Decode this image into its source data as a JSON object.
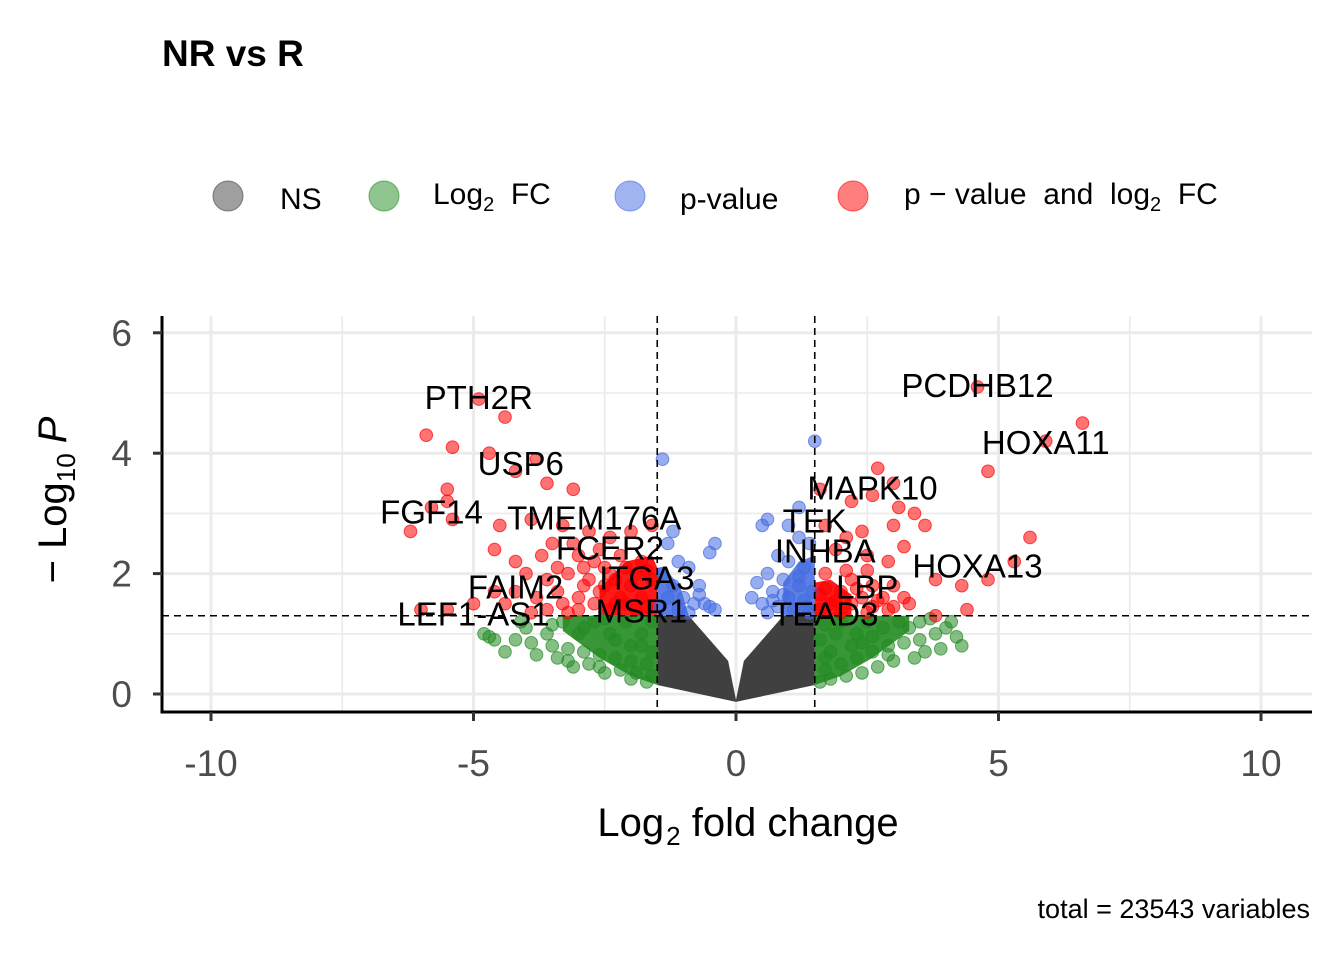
{
  "chart_data": {
    "type": "scatter",
    "title": "NR vs R",
    "caption": "total = 23543 variables",
    "xlabel": {
      "base": "Log",
      "sub": "2",
      "rest": " fold change"
    },
    "ylabel": {
      "pre": "− Log",
      "sub": "10",
      "var": "P"
    },
    "xlim": [
      -11,
      11
    ],
    "ylim": [
      -0.3,
      6.3
    ],
    "x_ticks": [
      -10,
      -5,
      0,
      5,
      10
    ],
    "x_tick_labels": [
      "-10",
      "-5",
      "0",
      "5",
      "10"
    ],
    "y_ticks": [
      0,
      2,
      4,
      6
    ],
    "y_tick_labels": [
      "0",
      "2",
      "4",
      "6"
    ],
    "grid": true,
    "fc_cutoff": 1.5,
    "p_cutoff_log": 1.3,
    "colors": {
      "NS": "#404040",
      "Log2FC": "#228B22",
      "pvalue": "#4169E1",
      "both": "#FF0000"
    },
    "legend": [
      {
        "key": "NS",
        "color": "#404040",
        "parts": [
          {
            "t": "NS"
          }
        ]
      },
      {
        "key": "Log2FC",
        "color": "#228B22",
        "parts": [
          {
            "t": "Log"
          },
          {
            "t": "2",
            "sub": true
          },
          {
            "t": "  FC"
          }
        ]
      },
      {
        "key": "pvalue",
        "color": "#4169E1",
        "parts": [
          {
            "t": "p-value"
          }
        ]
      },
      {
        "key": "both",
        "color": "#FF0000",
        "parts": [
          {
            "t": "p − value  and  log"
          },
          {
            "t": "2",
            "sub": true
          },
          {
            "t": "  FC"
          }
        ]
      }
    ],
    "points_both": [
      [
        -4.9,
        4.9
      ],
      [
        -4.4,
        4.6
      ],
      [
        -5.9,
        4.3
      ],
      [
        -5.4,
        4.1
      ],
      [
        -4.7,
        4.0
      ],
      [
        -3.8,
        3.9
      ],
      [
        -4.2,
        3.7
      ],
      [
        -3.6,
        3.5
      ],
      [
        -3.1,
        3.4
      ],
      [
        -5.5,
        3.4
      ],
      [
        -5.5,
        3.2
      ],
      [
        -5.8,
        3.1
      ],
      [
        -5.4,
        2.9
      ],
      [
        -6.2,
        2.7
      ],
      [
        -4.5,
        2.8
      ],
      [
        -3.9,
        2.9
      ],
      [
        -3.3,
        2.8
      ],
      [
        -2.8,
        2.7
      ],
      [
        -2.4,
        2.6
      ],
      [
        -2.0,
        2.7
      ],
      [
        -1.6,
        2.8
      ],
      [
        -3.5,
        2.5
      ],
      [
        -4.6,
        2.4
      ],
      [
        -4.2,
        2.2
      ],
      [
        -3.0,
        2.3
      ],
      [
        -2.6,
        2.4
      ],
      [
        -2.2,
        2.3
      ],
      [
        -1.8,
        2.2
      ],
      [
        -4.0,
        2.0
      ],
      [
        -3.6,
        1.9
      ],
      [
        -3.2,
        2.0
      ],
      [
        -2.8,
        1.9
      ],
      [
        -2.4,
        2.0
      ],
      [
        -2.0,
        1.8
      ],
      [
        -1.6,
        1.9
      ],
      [
        -4.6,
        1.7
      ],
      [
        -4.2,
        1.7
      ],
      [
        -3.8,
        1.6
      ],
      [
        -3.4,
        1.7
      ],
      [
        -3.0,
        1.6
      ],
      [
        -2.6,
        1.7
      ],
      [
        -2.2,
        1.6
      ],
      [
        -1.8,
        1.6
      ],
      [
        -5.0,
        1.5
      ],
      [
        -4.4,
        1.5
      ],
      [
        -3.6,
        1.4
      ],
      [
        -3.0,
        1.4
      ],
      [
        -2.4,
        1.4
      ],
      [
        -1.9,
        1.4
      ],
      [
        -6.0,
        1.4
      ],
      [
        -5.5,
        1.4
      ],
      [
        -3.9,
        1.35
      ],
      [
        -3.2,
        1.35
      ],
      [
        -2.7,
        1.5
      ],
      [
        -2.3,
        1.5
      ],
      [
        -1.7,
        1.45
      ],
      [
        -3.4,
        2.1
      ],
      [
        -2.9,
        2.1
      ],
      [
        -2.5,
        2.1
      ],
      [
        -2.1,
        2.1
      ],
      [
        -1.7,
        2.05
      ],
      [
        -3.7,
        2.3
      ],
      [
        -3.1,
        2.5
      ],
      [
        -2.7,
        2.2
      ],
      [
        -2.3,
        1.9
      ],
      [
        -1.9,
        2.0
      ],
      [
        -2.1,
        1.5
      ],
      [
        -2.5,
        1.8
      ],
      [
        -2.9,
        1.8
      ],
      [
        -3.3,
        1.5
      ],
      [
        4.6,
        5.1
      ],
      [
        6.6,
        4.5
      ],
      [
        5.9,
        4.2
      ],
      [
        4.8,
        3.7
      ],
      [
        2.7,
        3.75
      ],
      [
        3.0,
        3.5
      ],
      [
        1.6,
        3.4
      ],
      [
        2.6,
        3.3
      ],
      [
        3.1,
        3.1
      ],
      [
        2.2,
        3.2
      ],
      [
        3.4,
        3.0
      ],
      [
        3.6,
        2.8
      ],
      [
        3.0,
        2.8
      ],
      [
        1.7,
        2.8
      ],
      [
        2.4,
        2.7
      ],
      [
        3.2,
        2.45
      ],
      [
        2.1,
        2.6
      ],
      [
        1.9,
        2.4
      ],
      [
        2.5,
        2.3
      ],
      [
        2.9,
        2.2
      ],
      [
        5.6,
        2.6
      ],
      [
        5.3,
        2.2
      ],
      [
        3.8,
        1.9
      ],
      [
        4.3,
        1.8
      ],
      [
        4.8,
        1.9
      ],
      [
        1.7,
        2.0
      ],
      [
        2.2,
        1.9
      ],
      [
        2.6,
        1.8
      ],
      [
        3.0,
        1.8
      ],
      [
        3.2,
        1.6
      ],
      [
        2.0,
        1.7
      ],
      [
        2.4,
        1.6
      ],
      [
        2.8,
        1.6
      ],
      [
        1.8,
        1.5
      ],
      [
        2.2,
        1.5
      ],
      [
        2.6,
        1.45
      ],
      [
        3.0,
        1.45
      ],
      [
        3.8,
        1.3
      ],
      [
        4.4,
        1.4
      ],
      [
        1.6,
        1.4
      ],
      [
        2.0,
        1.35
      ],
      [
        2.5,
        1.35
      ],
      [
        2.9,
        1.4
      ],
      [
        1.7,
        1.75
      ],
      [
        1.9,
        1.55
      ],
      [
        2.3,
        1.75
      ],
      [
        2.7,
        1.55
      ],
      [
        3.3,
        1.5
      ],
      [
        2.1,
        2.05
      ],
      [
        2.5,
        2.05
      ],
      [
        1.6,
        1.65
      ]
    ],
    "points_pvalue": [
      [
        -1.4,
        3.9
      ],
      [
        1.5,
        4.2
      ],
      [
        1.2,
        3.1
      ],
      [
        0.6,
        2.9
      ],
      [
        0.5,
        2.8
      ],
      [
        -0.4,
        2.5
      ],
      [
        -0.5,
        2.35
      ],
      [
        -1.2,
        2.7
      ],
      [
        -1.3,
        2.5
      ],
      [
        -1.1,
        2.2
      ],
      [
        -0.9,
        2.1
      ],
      [
        -0.7,
        1.8
      ],
      [
        -1.4,
        2.0
      ],
      [
        -1.2,
        1.8
      ],
      [
        -1.0,
        1.6
      ],
      [
        -0.8,
        1.5
      ],
      [
        -0.6,
        1.5
      ],
      [
        -1.3,
        1.6
      ],
      [
        -1.1,
        1.4
      ],
      [
        -0.9,
        1.35
      ],
      [
        -0.7,
        1.65
      ],
      [
        -0.5,
        1.45
      ],
      [
        -1.45,
        1.45
      ],
      [
        -0.4,
        1.4
      ],
      [
        1.0,
        2.8
      ],
      [
        1.2,
        2.6
      ],
      [
        1.4,
        2.5
      ],
      [
        0.8,
        2.3
      ],
      [
        1.0,
        2.2
      ],
      [
        1.3,
        2.1
      ],
      [
        0.6,
        2.0
      ],
      [
        0.9,
        1.9
      ],
      [
        1.2,
        1.8
      ],
      [
        0.4,
        1.85
      ],
      [
        0.7,
        1.7
      ],
      [
        1.0,
        1.6
      ],
      [
        1.3,
        1.55
      ],
      [
        0.5,
        1.5
      ],
      [
        0.8,
        1.45
      ],
      [
        1.1,
        1.4
      ],
      [
        1.4,
        1.35
      ],
      [
        0.6,
        1.35
      ],
      [
        0.9,
        1.65
      ],
      [
        1.2,
        1.95
      ],
      [
        1.45,
        1.7
      ],
      [
        0.3,
        1.6
      ],
      [
        0.7,
        1.55
      ],
      [
        1.35,
        1.45
      ]
    ],
    "points_fc": [
      [
        -4.8,
        1.0
      ],
      [
        -4.7,
        0.95
      ],
      [
        -4.6,
        0.9
      ],
      [
        -4.2,
        0.9
      ],
      [
        -3.9,
        0.85
      ],
      [
        -3.5,
        0.8
      ],
      [
        -3.2,
        0.75
      ],
      [
        -2.9,
        0.7
      ],
      [
        -2.6,
        0.65
      ],
      [
        -2.3,
        0.6
      ],
      [
        -2.0,
        0.55
      ],
      [
        -1.7,
        0.5
      ],
      [
        -3.6,
        1.0
      ],
      [
        -3.0,
        1.0
      ],
      [
        -2.4,
        1.0
      ],
      [
        -1.8,
        1.0
      ],
      [
        -3.3,
        1.2
      ],
      [
        -2.7,
        1.2
      ],
      [
        -2.1,
        1.2
      ],
      [
        -1.6,
        1.2
      ],
      [
        -4.0,
        1.1
      ],
      [
        -3.4,
        0.6
      ],
      [
        -2.8,
        0.5
      ],
      [
        -2.2,
        0.4
      ],
      [
        -1.9,
        0.35
      ],
      [
        -1.6,
        0.3
      ],
      [
        -3.1,
        0.45
      ],
      [
        -2.5,
        0.35
      ],
      [
        -2.0,
        0.25
      ],
      [
        -1.7,
        0.2
      ],
      [
        -4.4,
        0.7
      ],
      [
        -3.8,
        0.65
      ],
      [
        -3.2,
        0.55
      ],
      [
        -2.6,
        0.45
      ],
      [
        -2.0,
        0.8
      ],
      [
        -1.6,
        0.7
      ],
      [
        -3.5,
        1.15
      ],
      [
        -2.9,
        1.1
      ],
      [
        -2.3,
        0.9
      ],
      [
        -1.8,
        0.8
      ],
      [
        -4.1,
        1.2
      ],
      [
        -2.5,
        1.25
      ],
      [
        4.3,
        0.8
      ],
      [
        4.2,
        0.95
      ],
      [
        4.1,
        1.2
      ],
      [
        4.0,
        1.1
      ],
      [
        3.8,
        1.0
      ],
      [
        3.5,
        0.9
      ],
      [
        3.2,
        0.85
      ],
      [
        2.9,
        0.8
      ],
      [
        2.6,
        0.7
      ],
      [
        2.3,
        0.6
      ],
      [
        2.0,
        0.5
      ],
      [
        1.7,
        0.4
      ],
      [
        3.4,
        0.6
      ],
      [
        3.6,
        0.7
      ],
      [
        3.0,
        0.55
      ],
      [
        2.7,
        0.45
      ],
      [
        2.4,
        0.35
      ],
      [
        2.1,
        0.3
      ],
      [
        1.8,
        0.25
      ],
      [
        1.6,
        0.2
      ],
      [
        3.3,
        1.1
      ],
      [
        2.8,
        1.1
      ],
      [
        2.3,
        1.0
      ],
      [
        1.9,
        1.0
      ],
      [
        1.6,
        0.9
      ],
      [
        3.1,
        1.2
      ],
      [
        2.5,
        1.2
      ],
      [
        2.0,
        1.2
      ],
      [
        1.7,
        1.15
      ],
      [
        3.7,
        1.25
      ],
      [
        2.2,
        0.8
      ],
      [
        2.6,
        0.95
      ],
      [
        1.8,
        0.7
      ],
      [
        3.9,
        0.75
      ],
      [
        3.5,
        1.2
      ],
      [
        2.9,
        0.65
      ],
      [
        2.4,
        0.85
      ],
      [
        1.7,
        0.6
      ]
    ],
    "labels": [
      {
        "text": "PTH2R",
        "x": -4.9,
        "y": 4.9
      },
      {
        "text": "USP6",
        "x": -4.1,
        "y": 3.8
      },
      {
        "text": "FGF14",
        "x": -5.8,
        "y": 3.0
      },
      {
        "text": "TMEM176A",
        "x": -2.7,
        "y": 2.9
      },
      {
        "text": "FCER2",
        "x": -2.4,
        "y": 2.4
      },
      {
        "text": "FAIM2",
        "x": -4.2,
        "y": 1.75
      },
      {
        "text": "ITGA3",
        "x": -1.7,
        "y": 1.9
      },
      {
        "text": "LEF1-AS1",
        "x": -5.0,
        "y": 1.3
      },
      {
        "text": "MSR1",
        "x": -1.8,
        "y": 1.35
      },
      {
        "text": "PCDHB12",
        "x": 4.6,
        "y": 5.1
      },
      {
        "text": "HOXA11",
        "x": 5.9,
        "y": 4.15
      },
      {
        "text": "MAPK10",
        "x": 2.6,
        "y": 3.4
      },
      {
        "text": "TEK",
        "x": 1.5,
        "y": 2.85
      },
      {
        "text": "INHBA",
        "x": 1.7,
        "y": 2.35
      },
      {
        "text": "HOXA13",
        "x": 4.6,
        "y": 2.1
      },
      {
        "text": "LBP",
        "x": 2.5,
        "y": 1.75
      },
      {
        "text": "TEAD3",
        "x": 1.7,
        "y": 1.3
      }
    ]
  }
}
